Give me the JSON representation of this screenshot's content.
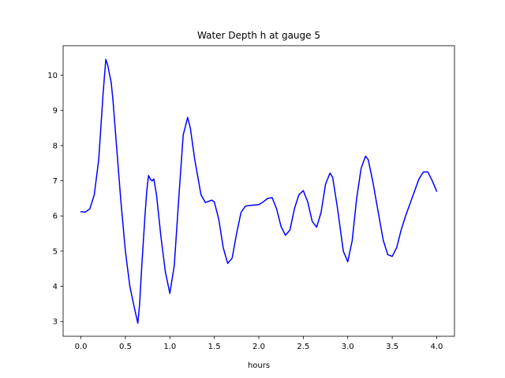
{
  "chart_data": {
    "type": "line",
    "title": "Water Depth h at gauge 5",
    "xlabel": "hours",
    "ylabel": "",
    "xlim": [
      -0.2,
      4.2
    ],
    "ylim": [
      2.58,
      10.84
    ],
    "xticks": [
      0.0,
      0.5,
      1.0,
      1.5,
      2.0,
      2.5,
      3.0,
      3.5,
      4.0
    ],
    "xtick_labels": [
      "0.0",
      "0.5",
      "1.0",
      "1.5",
      "2.0",
      "2.5",
      "3.0",
      "3.5",
      "4.0"
    ],
    "yticks": [
      3,
      4,
      5,
      6,
      7,
      8,
      9,
      10
    ],
    "ytick_labels": [
      "3",
      "4",
      "5",
      "6",
      "7",
      "8",
      "9",
      "10"
    ],
    "grid": false,
    "series": [
      {
        "color": "#0000ff",
        "x": [
          0.0,
          0.05,
          0.1,
          0.15,
          0.2,
          0.25,
          0.28,
          0.3,
          0.32,
          0.34,
          0.36,
          0.4,
          0.45,
          0.5,
          0.55,
          0.6,
          0.64,
          0.66,
          0.68,
          0.7,
          0.72,
          0.74,
          0.76,
          0.78,
          0.8,
          0.82,
          0.85,
          0.9,
          0.95,
          1.0,
          1.05,
          1.1,
          1.15,
          1.2,
          1.23,
          1.28,
          1.35,
          1.4,
          1.47,
          1.5,
          1.55,
          1.6,
          1.65,
          1.7,
          1.75,
          1.8,
          1.85,
          1.9,
          2.0,
          2.05,
          2.1,
          2.15,
          2.2,
          2.25,
          2.3,
          2.35,
          2.4,
          2.45,
          2.5,
          2.55,
          2.6,
          2.65,
          2.7,
          2.75,
          2.8,
          2.83,
          2.88,
          2.95,
          3.0,
          3.05,
          3.1,
          3.15,
          3.2,
          3.23,
          3.28,
          3.35,
          3.4,
          3.45,
          3.5,
          3.55,
          3.6,
          3.65,
          3.7,
          3.75,
          3.8,
          3.85,
          3.9,
          3.95,
          4.0
        ],
        "y": [
          6.12,
          6.11,
          6.2,
          6.6,
          7.6,
          9.5,
          10.45,
          10.3,
          10.05,
          9.8,
          9.3,
          8.0,
          6.4,
          5.0,
          4.0,
          3.4,
          2.95,
          3.5,
          4.4,
          5.2,
          6.0,
          6.7,
          7.15,
          7.05,
          7.0,
          7.05,
          6.6,
          5.4,
          4.4,
          3.8,
          4.6,
          6.5,
          8.3,
          8.8,
          8.5,
          7.6,
          6.6,
          6.38,
          6.45,
          6.4,
          5.9,
          5.1,
          4.65,
          4.8,
          5.5,
          6.1,
          6.28,
          6.3,
          6.32,
          6.4,
          6.5,
          6.52,
          6.2,
          5.7,
          5.45,
          5.6,
          6.2,
          6.6,
          6.72,
          6.4,
          5.85,
          5.68,
          6.1,
          6.9,
          7.22,
          7.1,
          6.3,
          5.0,
          4.7,
          5.3,
          6.5,
          7.35,
          7.7,
          7.6,
          7.0,
          6.0,
          5.3,
          4.9,
          4.85,
          5.1,
          5.6,
          6.0,
          6.35,
          6.7,
          7.05,
          7.25,
          7.25,
          7.0,
          6.7
        ]
      }
    ]
  }
}
